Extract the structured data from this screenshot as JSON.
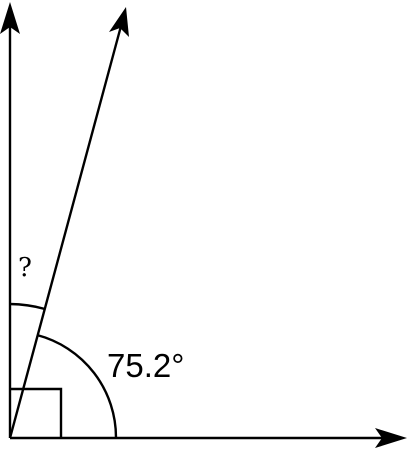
{
  "diagram": {
    "angle_label": "75.2°",
    "unknown_label": "?",
    "rays": [
      {
        "name": "horizontal-ray"
      },
      {
        "name": "slanted-ray"
      },
      {
        "name": "vertical-ray"
      }
    ],
    "marks": {
      "right_angle": true
    }
  }
}
